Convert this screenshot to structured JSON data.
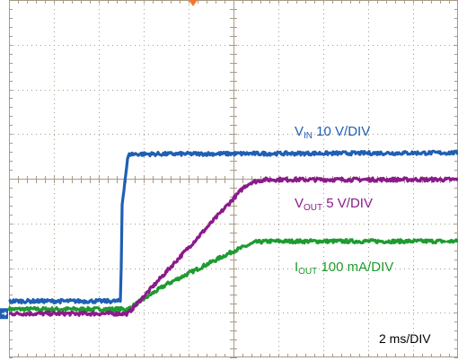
{
  "chart_data": {
    "type": "line",
    "time_scale": "2 ms/DIV",
    "grid": true,
    "grid_divisions": {
      "x": 10,
      "y": 8
    },
    "x_unit": "div",
    "y_unit": "div",
    "xlim": [
      0,
      10
    ],
    "ylim": [
      -4,
      4
    ],
    "series": [
      {
        "name": "VIN 10 V/DIV",
        "label_main": "V",
        "label_sub": "IN",
        "label_scale": " 10 V/DIV",
        "color": "#1F5FB4",
        "noise": 0.04,
        "x": [
          0.0,
          2.5,
          2.5,
          2.52,
          2.58,
          2.65,
          2.7,
          10.0
        ],
        "y": [
          -2.72,
          -2.72,
          -1.95,
          -0.55,
          -0.04,
          0.52,
          0.57,
          0.6
        ]
      },
      {
        "name": "VOUT 5 V/DIV",
        "label_main": "V",
        "label_sub": "OUT",
        "label_scale": " 5 V/DIV",
        "color": "#8B1A8B",
        "noise": 0.04,
        "x": [
          0.0,
          2.65,
          5.25,
          5.4,
          5.7,
          10.0
        ],
        "y": [
          -3.0,
          -3.0,
          -0.15,
          -0.06,
          0.0,
          0.0
        ]
      },
      {
        "name": "IOUT 100 mA/DIV",
        "label_main": "I",
        "label_sub": "OUT",
        "label_scale": " 100 mA/DIV",
        "color": "#1E9B30",
        "noise": 0.04,
        "x": [
          0.0,
          2.65,
          3.5,
          5.0,
          5.5,
          5.8,
          10.0
        ],
        "y": [
          -2.9,
          -2.9,
          -2.35,
          -1.6,
          -1.4,
          -1.38,
          -1.38
        ]
      }
    ],
    "annotations": [
      {
        "text": "2 ms/DIV"
      }
    ]
  },
  "markers": {
    "trigger_color": "#F07830",
    "ground_color": "#1F5FB4"
  }
}
